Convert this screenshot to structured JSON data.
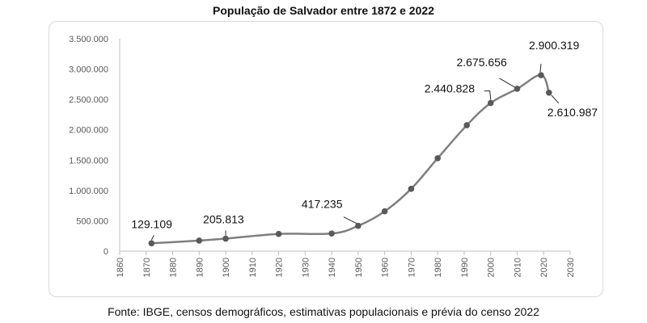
{
  "title": "População de Salvador entre 1872 e 2022",
  "source": "Fonte: IBGE, censos demográficos, estimativas populacionais e prévia do censo 2022",
  "chart_data": {
    "type": "line",
    "title": "População de Salvador entre 1872 e 2022",
    "xlabel": "",
    "ylabel": "",
    "xlim": [
      1860,
      2030
    ],
    "ylim": [
      0,
      3500000
    ],
    "x_ticks": [
      1860,
      1870,
      1880,
      1890,
      1900,
      1910,
      1920,
      1930,
      1940,
      1950,
      1960,
      1970,
      1980,
      1990,
      2000,
      2010,
      2020,
      2030
    ],
    "y_ticks": [
      0,
      500000,
      1000000,
      1500000,
      2000000,
      2500000,
      3000000,
      3500000
    ],
    "y_tick_labels": [
      "0",
      "500.000",
      "1.000.000",
      "1.500.000",
      "2.000.000",
      "2.500.000",
      "3.000.000",
      "3.500.000"
    ],
    "grid": false,
    "legend": "none",
    "color": "#7f7f7f",
    "marker_color": "#595959",
    "series": [
      {
        "x": [
          1872,
          1890,
          1900,
          1920,
          1940,
          1950,
          1960,
          1970,
          1980,
          1991,
          2000,
          2010,
          2019,
          2022
        ],
        "y": [
          129109,
          174412,
          205813,
          283422,
          290443,
          417235,
          655735,
          1027142,
          1531242,
          2075273,
          2440828,
          2675656,
          2900319,
          2610987
        ]
      }
    ],
    "annotations": [
      {
        "text": "129.109",
        "x": 1872,
        "y": 129109
      },
      {
        "text": "205.813",
        "x": 1900,
        "y": 205813
      },
      {
        "text": "417.235",
        "x": 1950,
        "y": 417235
      },
      {
        "text": "2.440.828",
        "x": 2000,
        "y": 2440828
      },
      {
        "text": "2.675.656",
        "x": 2010,
        "y": 2675656
      },
      {
        "text": "2.900.319",
        "x": 2019,
        "y": 2900319
      },
      {
        "text": "2.610.987",
        "x": 2022,
        "y": 2610987
      }
    ]
  }
}
